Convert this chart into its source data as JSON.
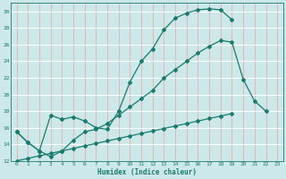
{
  "xlabel": "Humidex (Indice chaleur)",
  "bg_color": "#cce8e8",
  "grid_color_h": "#ffffff",
  "grid_color_v": "#e8a0a0",
  "line_color": "#1a7a6e",
  "xlim": [
    -0.5,
    23.5
  ],
  "ylim": [
    12,
    31
  ],
  "xticks": [
    0,
    1,
    2,
    3,
    4,
    5,
    6,
    7,
    8,
    9,
    10,
    11,
    12,
    13,
    14,
    15,
    16,
    17,
    18,
    19,
    20,
    21,
    22,
    23
  ],
  "yticks": [
    12,
    14,
    16,
    18,
    20,
    22,
    24,
    26,
    28,
    30
  ],
  "curve1_x": [
    0,
    1,
    2,
    3,
    4,
    5,
    6,
    7,
    8,
    9,
    10,
    11,
    12,
    13,
    14,
    15,
    16,
    17,
    18,
    19
  ],
  "curve1_y": [
    15.5,
    14.2,
    13.2,
    17.5,
    17.0,
    17.3,
    16.8,
    16.0,
    15.8,
    18.0,
    21.5,
    24.0,
    25.5,
    27.8,
    29.2,
    29.8,
    30.2,
    30.3,
    30.2,
    29.0
  ],
  "curve2_x": [
    0,
    1,
    2,
    3,
    4,
    5,
    6,
    7,
    8,
    9,
    10,
    11,
    12,
    13,
    14,
    15,
    16,
    17,
    18,
    19,
    20,
    21,
    22
  ],
  "curve2_y": [
    15.5,
    14.2,
    13.2,
    12.5,
    13.2,
    14.5,
    15.5,
    15.8,
    16.5,
    17.5,
    18.5,
    19.5,
    20.5,
    22.0,
    23.0,
    24.0,
    25.0,
    25.8,
    26.5,
    26.3,
    21.8,
    19.2,
    18.0
  ],
  "curve3_x": [
    0,
    1,
    2,
    3,
    4,
    5,
    6,
    7,
    8,
    9,
    10,
    11,
    12,
    13,
    14,
    15,
    16,
    17,
    18,
    19
  ],
  "curve3_y": [
    12.0,
    12.3,
    12.6,
    12.9,
    13.2,
    13.5,
    13.8,
    14.1,
    14.4,
    14.7,
    15.0,
    15.3,
    15.6,
    15.9,
    16.2,
    16.5,
    16.8,
    17.1,
    17.4,
    17.7
  ]
}
